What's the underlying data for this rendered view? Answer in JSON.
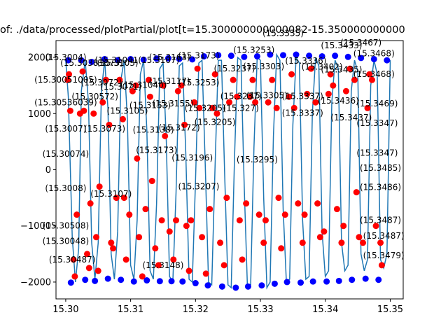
{
  "chart_data": {
    "type": "line",
    "title": "of: ./data/processed/plotPartial/plot[t=15.300000000000082-15.350000000000",
    "xlim": [
      15.2985,
      15.352
    ],
    "ylim": [
      -2300,
      2300
    ],
    "x_ticks": [
      15.3,
      15.31,
      15.32,
      15.33,
      15.34,
      15.35
    ],
    "x_tick_labels": [
      "15.30",
      "15.31",
      "15.32",
      "15.33",
      "15.34",
      "15.35"
    ],
    "y_ticks": [
      -2000,
      -1000,
      0,
      1000,
      2000
    ],
    "y_tick_labels": [
      "−2000",
      "−1000",
      "0",
      "1000",
      "2000"
    ],
    "grid": false,
    "colors": {
      "line": "#1f77b4",
      "extrema": "#0000ff",
      "points": "#ff0000"
    },
    "series": [
      {
        "role": "signal",
        "x": [
          15.3,
          15.3004,
          15.301,
          15.3015,
          15.302,
          15.3024,
          15.303,
          15.3035,
          15.304,
          15.3045,
          15.305,
          15.3055,
          15.306,
          15.3065,
          15.307,
          15.3075,
          15.308,
          15.3085,
          15.309,
          15.3095,
          15.31,
          15.3105,
          15.311,
          15.3115,
          15.312,
          15.3125,
          15.313,
          15.3135,
          15.314,
          15.3145,
          15.315,
          15.3155,
          15.316,
          15.3165,
          15.317,
          15.3175,
          15.318,
          15.3185,
          15.319,
          15.3195,
          15.32,
          15.3205,
          15.321,
          15.3215,
          15.322,
          15.3225,
          15.323,
          15.3235,
          15.324,
          15.3245,
          15.325,
          15.3255,
          15.326,
          15.3265,
          15.327,
          15.3275,
          15.328,
          15.3285,
          15.329,
          15.3295,
          15.33,
          15.3305,
          15.331,
          15.3315,
          15.332,
          15.3325,
          15.333,
          15.3335,
          15.334,
          15.3345,
          15.335,
          15.3355,
          15.336,
          15.3365,
          15.337,
          15.3375,
          15.338,
          15.3385,
          15.339,
          15.3395,
          15.34,
          15.3405,
          15.341,
          15.3415,
          15.342,
          15.3425,
          15.343,
          15.3435,
          15.344,
          15.3445,
          15.345,
          15.3455,
          15.346,
          15.3465,
          15.347,
          15.3475,
          15.348,
          15.3485,
          15.349,
          15.3495,
          15.35
        ],
        "y": [
          1950,
          1300,
          -1200,
          -2000,
          -1400,
          1400,
          1950,
          1200,
          -1300,
          -1950,
          -1300,
          1400,
          1950,
          1100,
          -1500,
          -1950,
          -1100,
          1600,
          1950,
          900,
          -1700,
          -1950,
          -900,
          1700,
          1950,
          700,
          -1800,
          -1950,
          -600,
          1800,
          1900,
          500,
          -1900,
          -2000,
          -400,
          1850,
          1900,
          300,
          -1950,
          -2000,
          -200,
          1900,
          1950,
          100,
          -2000,
          -2050,
          0,
          1950,
          1950,
          -100,
          -2050,
          -2100,
          200,
          2000,
          1950,
          -300,
          -2100,
          -2050,
          400,
          2000,
          1950,
          -500,
          -2100,
          -2000,
          600,
          2050,
          1950,
          -700,
          -2000,
          -1950,
          800,
          2000,
          1900,
          -900,
          -1950,
          -1900,
          1000,
          2000,
          1850,
          -1100,
          -1900,
          -1800,
          1200,
          1950,
          1800,
          -1300,
          -1800,
          -1700,
          1400,
          1950,
          1750,
          -1500,
          -1800,
          -1600,
          1500,
          1950,
          1700,
          -1600,
          -1750,
          -1500,
          1950
        ]
      },
      {
        "role": "extrema",
        "x": [
          15.3004,
          15.3008,
          15.3024,
          15.303,
          15.304,
          15.3045,
          15.306,
          15.3065,
          15.308,
          15.3085,
          15.31,
          15.3105,
          15.312,
          15.3125,
          15.314,
          15.3145,
          15.3158,
          15.3163,
          15.3175,
          15.318,
          15.3195,
          15.32,
          15.3213,
          15.3219,
          15.3235,
          15.3241,
          15.3255,
          15.3262,
          15.3275,
          15.3281,
          15.3295,
          15.3302,
          15.3315,
          15.3322,
          15.3335,
          15.3341,
          15.3355,
          15.3362,
          15.3375,
          15.3381,
          15.3395,
          15.3402,
          15.3415,
          15.3421,
          15.3435,
          15.3441,
          15.3455,
          15.3462,
          15.3475,
          15.3482,
          15.3495
        ],
        "y": [
          1950,
          -2010,
          1950,
          -1960,
          1920,
          -1980,
          1970,
          -1940,
          1950,
          -1960,
          1970,
          -1990,
          1960,
          -1970,
          1980,
          -1985,
          1985,
          -1985,
          1975,
          -1990,
          1965,
          -2020,
          2020,
          -2060,
          2040,
          -2080,
          2030,
          -2100,
          2010,
          -2080,
          2020,
          -2060,
          2050,
          -2030,
          2040,
          -2000,
          2050,
          -2010,
          2030,
          -1990,
          2020,
          -1990,
          2030,
          -1980,
          2010,
          -1960,
          1990,
          -1940,
          1970,
          -1960,
          1950
        ]
      },
      {
        "role": "samples",
        "x": [
          15.3003,
          15.3005,
          15.3007,
          15.3012,
          15.3014,
          15.3017,
          15.3022,
          15.3026,
          15.3028,
          15.3033,
          15.3036,
          15.3038,
          15.3043,
          15.3047,
          15.305,
          15.3052,
          15.3057,
          15.3062,
          15.3067,
          15.307,
          15.3073,
          15.3078,
          15.3083,
          15.3088,
          15.309,
          15.3093,
          15.3098,
          15.3103,
          15.3108,
          15.311,
          15.3113,
          15.3118,
          15.3123,
          15.3128,
          15.313,
          15.3133,
          15.3138,
          15.3143,
          15.3148,
          15.315,
          15.3153,
          15.316,
          15.3166,
          15.317,
          15.3173,
          15.3178,
          15.3183,
          15.3186,
          15.319,
          15.3193,
          15.3198,
          15.3203,
          15.3206,
          15.321,
          15.3216,
          15.3222,
          15.3226,
          15.323,
          15.3233,
          15.3238,
          15.3244,
          15.3248,
          15.3252,
          15.3258,
          15.3264,
          15.3268,
          15.3272,
          15.3278,
          15.3284,
          15.3288,
          15.3292,
          15.3298,
          15.3305,
          15.3308,
          15.3312,
          15.3318,
          15.3325,
          15.3328,
          15.3332,
          15.3338,
          15.3344,
          15.3348,
          15.3352,
          15.3358,
          15.3365,
          15.3368,
          15.3372,
          15.3378,
          15.3385,
          15.3388,
          15.3392,
          15.3398,
          15.3405,
          15.3408,
          15.3412,
          15.3418,
          15.3425,
          15.3428,
          15.3432,
          15.3438,
          15.3445,
          15.3448,
          15.3452,
          15.3458,
          15.3465,
          15.3468,
          15.3472,
          15.3478,
          15.3485,
          15.3487
        ],
        "y": [
          1600,
          1700,
          1050,
          -1600,
          -1900,
          -800,
          1000,
          1750,
          1050,
          -1500,
          -1750,
          -600,
          1000,
          -1200,
          -1800,
          -300,
          1200,
          1600,
          800,
          -1300,
          -1400,
          -500,
          1600,
          900,
          -500,
          -1600,
          -800,
          1400,
          1500,
          200,
          -1200,
          -1900,
          -700,
          1600,
          1300,
          -200,
          -1400,
          -1700,
          -900,
          1500,
          600,
          -1100,
          -1600,
          -900,
          1400,
          1500,
          800,
          -1000,
          -1800,
          -900,
          1200,
          1800,
          1100,
          -1200,
          -1850,
          -700,
          1100,
          1700,
          1000,
          -1300,
          -1700,
          -500,
          1200,
          1600,
          1300,
          -900,
          -1600,
          -600,
          1300,
          1600,
          1200,
          -800,
          -1300,
          -900,
          1200,
          1600,
          1100,
          -500,
          -1400,
          -800,
          1300,
          1700,
          1100,
          -600,
          -1300,
          -800,
          1350,
          1800,
          1200,
          -600,
          -1200,
          -1100,
          1350,
          1700,
          1500,
          -700,
          -1300,
          -1000,
          1400,
          1800,
          1600,
          -400,
          -1200,
          -1300,
          1100,
          1700,
          1600,
          -1000,
          -1300,
          -1700
        ]
      }
    ],
    "annotations": [
      {
        "x": 15.3,
        "y": 1950,
        "text": "(15.3004)"
      },
      {
        "x": 15.3,
        "y": 1550,
        "text": "(15.30051005)"
      },
      {
        "x": 15.3,
        "y": 1150,
        "text": "(15.30536039)"
      },
      {
        "x": 15.3,
        "y": 680,
        "text": "(15.3007)"
      },
      {
        "x": 15.3,
        "y": 230,
        "text": "(15.30074)"
      },
      {
        "x": 15.3,
        "y": -380,
        "text": "(15.3008)"
      },
      {
        "x": 15.3,
        "y": -1050,
        "text": "(15.30508)"
      },
      {
        "x": 15.3,
        "y": -1320,
        "text": "(15.30048)"
      },
      {
        "x": 15.301,
        "y": -1650,
        "text": "(15.30487)"
      },
      {
        "x": 15.304,
        "y": 1850,
        "text": "(15.30381073)"
      },
      {
        "x": 15.3055,
        "y": 1500,
        "text": "(15.3072)"
      },
      {
        "x": 15.3045,
        "y": 1250,
        "text": "(15.30572)"
      },
      {
        "x": 15.306,
        "y": 680,
        "text": "(15.3073)"
      },
      {
        "x": 15.307,
        "y": -480,
        "text": "(15.3107)"
      },
      {
        "x": 15.308,
        "y": 1850,
        "text": "(15.3103)"
      },
      {
        "x": 15.3085,
        "y": 1430,
        "text": "(15.3071)"
      },
      {
        "x": 15.3095,
        "y": 1000,
        "text": "(15.3105)"
      },
      {
        "x": 15.311,
        "y": 1900,
        "text": "(15.31041(15.3107)"
      },
      {
        "x": 15.312,
        "y": 1460,
        "text": "(15.31040)"
      },
      {
        "x": 15.313,
        "y": 1100,
        "text": "(15.3153)"
      },
      {
        "x": 15.3135,
        "y": 660,
        "text": "(15.3138)"
      },
      {
        "x": 15.314,
        "y": 300,
        "text": "(15.3173)"
      },
      {
        "x": 15.315,
        "y": -1750,
        "text": "(15.3148)"
      },
      {
        "x": 15.316,
        "y": 1950,
        "text": "(15.3163)"
      },
      {
        "x": 15.316,
        "y": 1530,
        "text": "(15.3117)"
      },
      {
        "x": 15.3165,
        "y": 1130,
        "text": "(15.3155)"
      },
      {
        "x": 15.3175,
        "y": 700,
        "text": "(15.3172)"
      },
      {
        "x": 15.3195,
        "y": 160,
        "text": "(15.3196)"
      },
      {
        "x": 15.3205,
        "y": -350,
        "text": "(15.3207)"
      },
      {
        "x": 15.3205,
        "y": 1980,
        "text": "(15.3173)"
      },
      {
        "x": 15.3205,
        "y": 1500,
        "text": "(15.3253)"
      },
      {
        "x": 15.3215,
        "y": 1050,
        "text": "(15.3205)"
      },
      {
        "x": 15.323,
        "y": 800,
        "text": "(15.3205)"
      },
      {
        "x": 15.326,
        "y": 1750,
        "text": "(15.3237)"
      },
      {
        "x": 15.327,
        "y": 1260,
        "text": "(15.3237)"
      },
      {
        "x": 15.327,
        "y": 1050,
        "text": "(15.327)"
      },
      {
        "x": 15.329,
        "y": 2080,
        "text": "(15.3253)"
      },
      {
        "x": 15.3305,
        "y": 1790,
        "text": "(15.3303)"
      },
      {
        "x": 15.331,
        "y": 1270,
        "text": "(15.3305)"
      },
      {
        "x": 15.3295,
        "y": 130,
        "text": "(15.3295)"
      },
      {
        "x": 15.3335,
        "y": 2380,
        "text": "(15.3335)"
      },
      {
        "x": 15.337,
        "y": 1890,
        "text": "(15.3336)"
      },
      {
        "x": 15.3365,
        "y": 1260,
        "text": "(15.3337)"
      },
      {
        "x": 15.3365,
        "y": 960,
        "text": "(15.3337)"
      },
      {
        "x": 15.3395,
        "y": 1780,
        "text": "(15.3402)"
      },
      {
        "x": 15.3425,
        "y": 2160,
        "text": "(15.3433)"
      },
      {
        "x": 15.3425,
        "y": 1730,
        "text": "(15.3435)"
      },
      {
        "x": 15.342,
        "y": 1180,
        "text": "(15.3436)"
      },
      {
        "x": 15.344,
        "y": 880,
        "text": "(15.3437)"
      },
      {
        "x": 15.3455,
        "y": 2210,
        "text": "(15.3467)"
      },
      {
        "x": 15.3475,
        "y": 2020,
        "text": "(15.3468)"
      },
      {
        "x": 15.3475,
        "y": 1650,
        "text": "(15.3468)"
      },
      {
        "x": 15.348,
        "y": 1130,
        "text": "(15.3469)"
      },
      {
        "x": 15.348,
        "y": 780,
        "text": "(15.3347)"
      },
      {
        "x": 15.348,
        "y": 250,
        "text": "(15.3347)"
      },
      {
        "x": 15.3485,
        "y": -20,
        "text": "(15.3485)"
      },
      {
        "x": 15.3485,
        "y": -360,
        "text": "(15.3486)"
      },
      {
        "x": 15.3485,
        "y": -950,
        "text": "(15.3487)"
      },
      {
        "x": 15.349,
        "y": -1230,
        "text": "(15.3487)"
      },
      {
        "x": 15.349,
        "y": -1580,
        "text": "(15.3479)"
      }
    ]
  }
}
